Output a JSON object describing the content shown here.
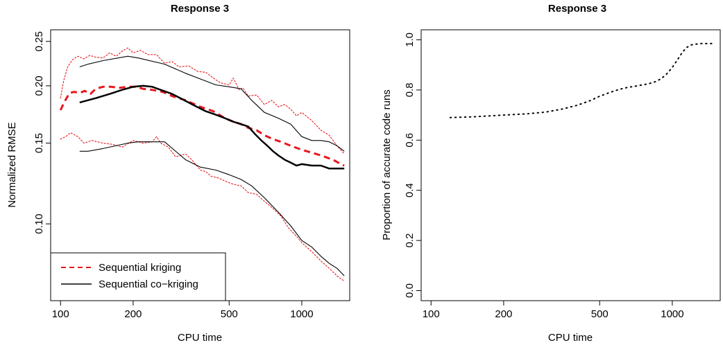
{
  "chart_data": [
    {
      "type": "line",
      "title": "Response 3",
      "xlabel": "CPU time",
      "ylabel": "Normalized RMSE",
      "x_scale": "log",
      "y_scale": "log",
      "xlim": [
        91,
        1580
      ],
      "ylim": [
        0.068,
        0.265
      ],
      "xticks": [
        100,
        200,
        500,
        1000
      ],
      "xtick_labels": [
        "100",
        "200",
        "500",
        "1000"
      ],
      "yticks": [
        0.1,
        0.15,
        0.2,
        0.25
      ],
      "ytick_labels": [
        "0.10",
        "0.15",
        "0.20",
        "0.25"
      ],
      "legend_position": "bottom-left",
      "legend": [
        {
          "label": "Sequential kriging",
          "color": "#e8161b",
          "style": "dashed"
        },
        {
          "label": "Sequential co−kriging",
          "color": "#000000",
          "style": "solid"
        }
      ],
      "series": [
        {
          "name": "Sequential kriging",
          "role": "median",
          "color": "#e8161b",
          "style": "dashed-thick",
          "x": [
            100,
            104,
            109,
            114,
            120,
            126,
            133,
            140,
            150,
            162,
            175,
            190,
            205,
            220,
            240,
            265,
            290,
            330,
            380,
            430,
            480,
            520,
            560,
            600,
            650,
            700,
            760,
            820,
            900,
            1000,
            1100,
            1200,
            1350,
            1450,
            1500
          ],
          "y": [
            0.177,
            0.185,
            0.193,
            0.194,
            0.193,
            0.195,
            0.192,
            0.197,
            0.199,
            0.199,
            0.198,
            0.199,
            0.199,
            0.197,
            0.196,
            0.194,
            0.19,
            0.186,
            0.18,
            0.176,
            0.17,
            0.167,
            0.165,
            0.162,
            0.16,
            0.156,
            0.153,
            0.151,
            0.148,
            0.145,
            0.143,
            0.141,
            0.138,
            0.135,
            0.134
          ]
        },
        {
          "name": "Sequential kriging",
          "role": "upper bound",
          "color": "#e8161b",
          "style": "dotted",
          "x": [
            100,
            103,
            107,
            112,
            118,
            125,
            132,
            140,
            150,
            160,
            170,
            180,
            190,
            200,
            215,
            230,
            250,
            270,
            290,
            310,
            340,
            370,
            400,
            430,
            460,
            500,
            520,
            550,
            570,
            600,
            650,
            700,
            750,
            800,
            850,
            900,
            950,
            1000,
            1100,
            1200,
            1300,
            1400,
            1500
          ],
          "y": [
            0.188,
            0.205,
            0.22,
            0.228,
            0.232,
            0.229,
            0.233,
            0.231,
            0.23,
            0.236,
            0.232,
            0.238,
            0.242,
            0.236,
            0.239,
            0.234,
            0.234,
            0.224,
            0.226,
            0.22,
            0.221,
            0.215,
            0.214,
            0.208,
            0.203,
            0.201,
            0.208,
            0.196,
            0.198,
            0.19,
            0.191,
            0.182,
            0.186,
            0.18,
            0.182,
            0.178,
            0.172,
            0.175,
            0.168,
            0.16,
            0.156,
            0.148,
            0.142
          ]
        },
        {
          "name": "Sequential kriging",
          "role": "lower bound",
          "color": "#e8161b",
          "style": "dotted",
          "x": [
            100,
            105,
            110,
            118,
            125,
            135,
            150,
            165,
            180,
            200,
            220,
            240,
            250,
            260,
            280,
            300,
            330,
            350,
            380,
            400,
            420,
            450,
            480,
            520,
            560,
            600,
            650,
            700,
            760,
            820,
            880,
            950,
            1000,
            1100,
            1200,
            1300,
            1400,
            1500
          ],
          "y": [
            0.153,
            0.155,
            0.158,
            0.155,
            0.15,
            0.152,
            0.15,
            0.149,
            0.147,
            0.152,
            0.15,
            0.151,
            0.155,
            0.15,
            0.147,
            0.14,
            0.142,
            0.138,
            0.131,
            0.13,
            0.127,
            0.126,
            0.124,
            0.122,
            0.121,
            0.117,
            0.116,
            0.112,
            0.108,
            0.104,
            0.098,
            0.094,
            0.091,
            0.087,
            0.083,
            0.08,
            0.077,
            0.075
          ]
        },
        {
          "name": "Sequential co−kriging",
          "role": "median",
          "color": "#000000",
          "style": "solid-thick",
          "x": [
            120,
            140,
            160,
            180,
            200,
            220,
            240,
            260,
            290,
            320,
            360,
            400,
            440,
            480,
            520,
            560,
            600,
            640,
            680,
            720,
            760,
            800,
            850,
            900,
            950,
            1000,
            1100,
            1200,
            1300,
            1400,
            1500
          ],
          "y": [
            0.184,
            0.188,
            0.192,
            0.196,
            0.199,
            0.2,
            0.199,
            0.196,
            0.192,
            0.187,
            0.181,
            0.176,
            0.173,
            0.17,
            0.167,
            0.165,
            0.163,
            0.157,
            0.152,
            0.148,
            0.144,
            0.141,
            0.138,
            0.136,
            0.134,
            0.135,
            0.134,
            0.134,
            0.132,
            0.132,
            0.132
          ]
        },
        {
          "name": "Sequential co−kriging",
          "role": "upper bound",
          "color": "#000000",
          "style": "solid-thin",
          "x": [
            120,
            130,
            150,
            190,
            210,
            270,
            330,
            380,
            440,
            500,
            560,
            620,
            700,
            800,
            900,
            1000,
            1100,
            1200,
            1300,
            1400,
            1500
          ],
          "y": [
            0.22,
            0.223,
            0.227,
            0.232,
            0.23,
            0.223,
            0.213,
            0.207,
            0.201,
            0.199,
            0.197,
            0.186,
            0.175,
            0.17,
            0.165,
            0.155,
            0.152,
            0.152,
            0.151,
            0.148,
            0.144
          ]
        },
        {
          "name": "Sequential co−kriging",
          "role": "lower bound",
          "color": "#000000",
          "style": "solid-thin",
          "x": [
            120,
            130,
            150,
            190,
            210,
            270,
            330,
            380,
            440,
            500,
            560,
            620,
            700,
            800,
            900,
            1000,
            1100,
            1200,
            1300,
            1400,
            1500
          ],
          "y": [
            0.144,
            0.144,
            0.146,
            0.15,
            0.151,
            0.151,
            0.138,
            0.133,
            0.131,
            0.128,
            0.125,
            0.121,
            0.114,
            0.106,
            0.099,
            0.092,
            0.089,
            0.085,
            0.082,
            0.08,
            0.077
          ]
        }
      ]
    },
    {
      "type": "line",
      "title": "Response 3",
      "xlabel": "CPU time",
      "ylabel": "Proportion of accurate code runs",
      "x_scale": "log",
      "xlim": [
        91,
        1580
      ],
      "ylim": [
        -0.04,
        1.04
      ],
      "xticks": [
        100,
        200,
        500,
        1000
      ],
      "xtick_labels": [
        "100",
        "200",
        "500",
        "1000"
      ],
      "yticks": [
        0.0,
        0.2,
        0.4,
        0.6,
        0.8,
        1.0
      ],
      "ytick_labels": [
        "0.0",
        "0.2",
        "0.4",
        "0.6",
        "0.8",
        "1.0"
      ],
      "series": [
        {
          "color": "#000000",
          "style": "dotted",
          "x": [
            120,
            150,
            200,
            250,
            300,
            350,
            400,
            450,
            500,
            550,
            600,
            650,
            700,
            750,
            800,
            850,
            900,
            950,
            1000,
            1050,
            1100,
            1150,
            1200,
            1300,
            1400,
            1500
          ],
          "y": [
            0.69,
            0.693,
            0.7,
            0.705,
            0.712,
            0.724,
            0.738,
            0.755,
            0.775,
            0.79,
            0.802,
            0.81,
            0.815,
            0.82,
            0.825,
            0.833,
            0.845,
            0.865,
            0.89,
            0.92,
            0.95,
            0.97,
            0.98,
            0.985,
            0.985,
            0.985
          ]
        }
      ]
    }
  ]
}
